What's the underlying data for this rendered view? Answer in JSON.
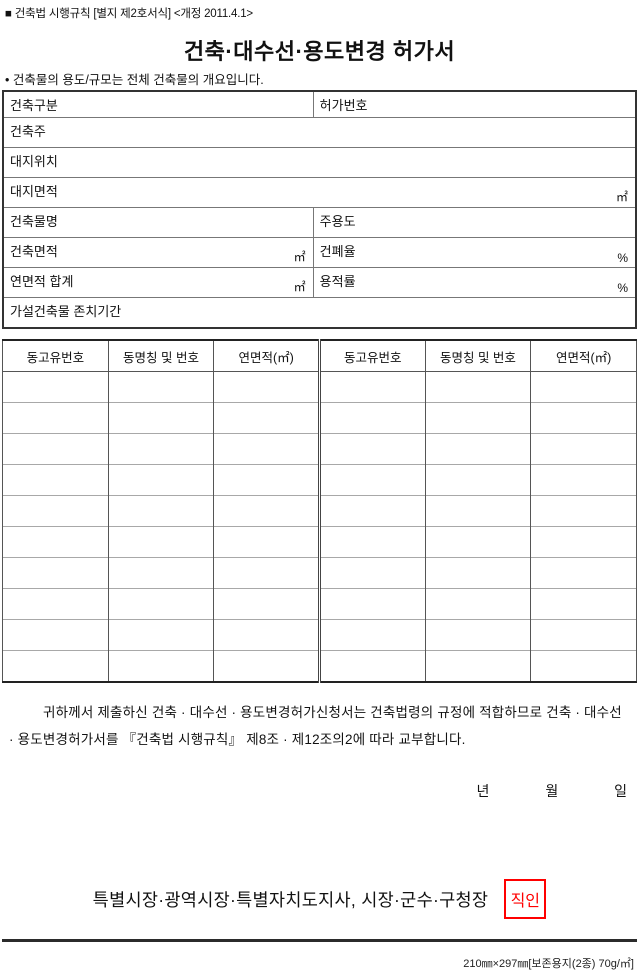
{
  "header": {
    "note": "■ 건축법 시행규칙 [별지 제2호서식] <개정 2011.4.1>",
    "title": "건축·대수선·용도변경  허가서",
    "bullet_note": "• 건축물의 용도/규모는 전체 건축물의 개요입니다."
  },
  "info": {
    "construction_type_label": "건축구분",
    "permit_number_label": "허가번호",
    "owner_label": "건축주",
    "site_location_label": "대지위치",
    "site_area_label": "대지면적",
    "site_area_unit": "㎡",
    "building_name_label": "건축물명",
    "main_use_label": "주용도",
    "building_area_label": "건축면적",
    "building_area_unit": "㎡",
    "coverage_ratio_label": "건폐율",
    "coverage_ratio_unit": "%",
    "total_floor_area_label": "연면적 합계",
    "total_floor_area_unit": "㎡",
    "floor_area_ratio_label": "용적률",
    "floor_area_ratio_unit": "%",
    "temporary_building_label": "가설건축물 존치기간"
  },
  "dong_table": {
    "headers": [
      "동고유번호",
      "동명칭 및 번호",
      "연면적(㎡)",
      "동고유번호",
      "동명칭 및 번호",
      "연면적(㎡)"
    ],
    "empty_row_count": 10
  },
  "body_paragraph": "귀하께서 제출하신 건축 · 대수선 · 용도변경허가신청서는 건축법령의 규정에 적합하므로 건축 · 대수선 · 용도변경허가서를 『건축법 시행규칙』 제8조 · 제12조의2에 따라 교부합니다.",
  "date_line": {
    "year_label": "년",
    "month_label": "월",
    "day_label": "일"
  },
  "signature": {
    "issuer": "특별시장·광역시장·특별자치도지사, 시장·군수·구청장",
    "seal_label": "직인",
    "seal_color": "#ff0000"
  },
  "footer": {
    "paper_spec": "210㎜×297㎜[보존용지(2종) 70g/㎡]"
  }
}
